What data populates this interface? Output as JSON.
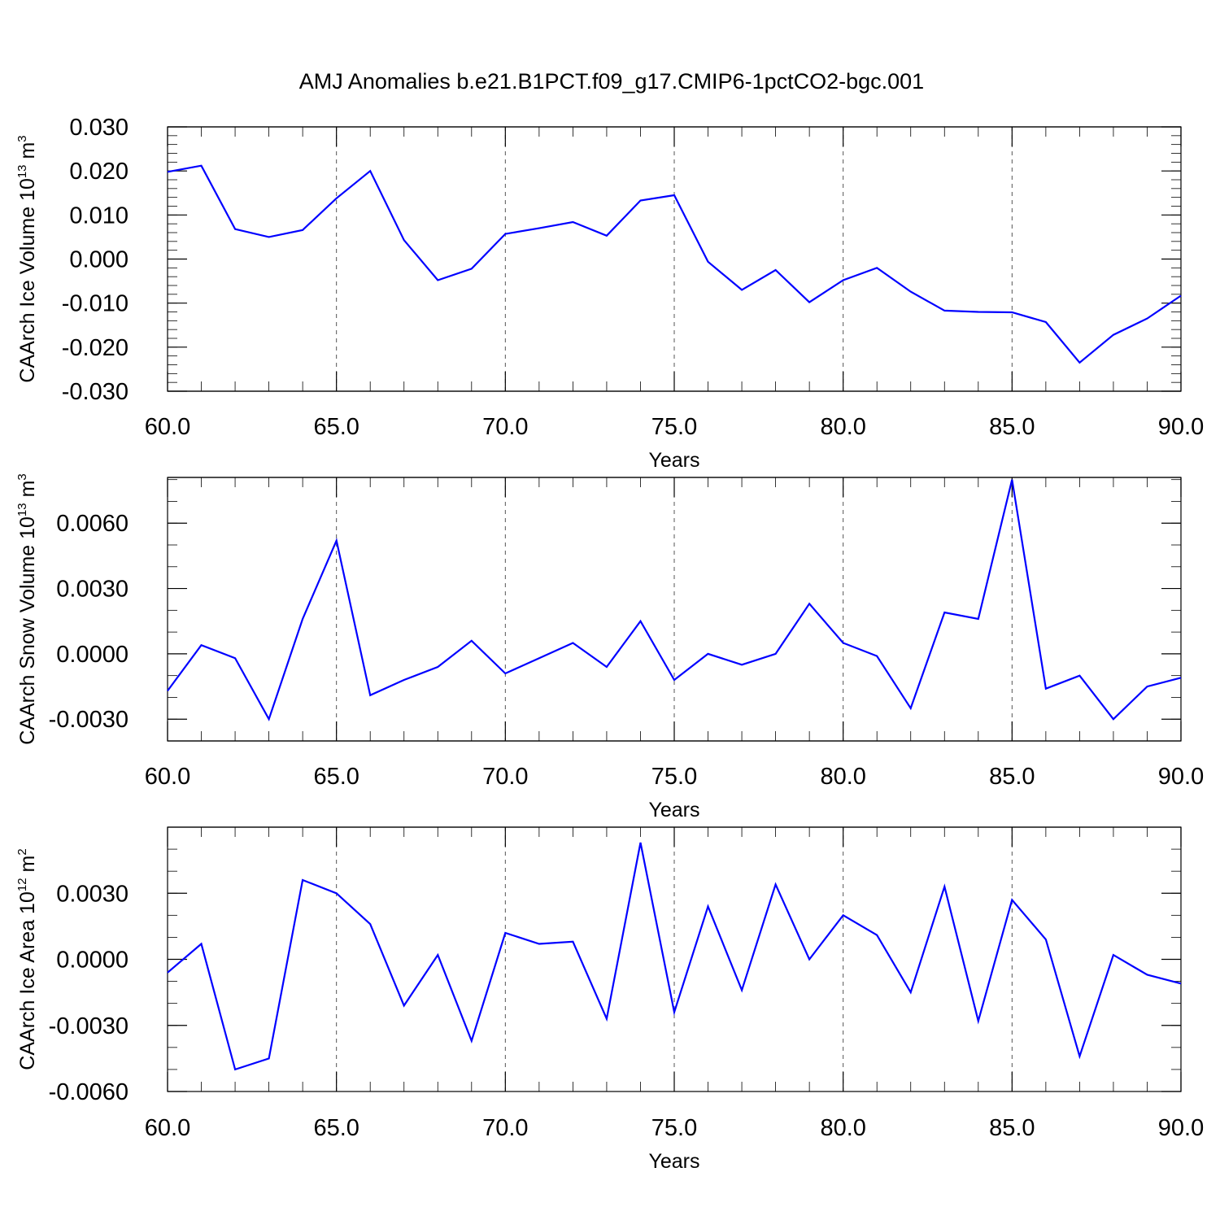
{
  "title": "AMJ Anomalies b.e21.B1PCT.f09_g17.CMIP6-1pctCO2-bgc.001",
  "chart_data": [
    {
      "type": "line",
      "ylabel": "CAArch Ice Volume 10",
      "ylabel_exp": "13",
      "ylabel_unit": "m",
      "ylabel_unit_exp": "3",
      "xlabel": "Years",
      "xlim": [
        60,
        90
      ],
      "ylim": [
        -0.03,
        0.03
      ],
      "xticks": [
        "60.0",
        "65.0",
        "70.0",
        "75.0",
        "80.0",
        "85.0",
        "90.0"
      ],
      "yticks": [
        "0.030",
        "0.020",
        "0.010",
        "0.000",
        "-0.010",
        "-0.020",
        "-0.030"
      ],
      "ytick_values": [
        0.03,
        0.02,
        0.01,
        0.0,
        -0.01,
        -0.02,
        -0.03
      ],
      "yminor_step": 0.002,
      "ref_lines": [
        0.03,
        -0.03
      ],
      "x": [
        60,
        61,
        62,
        63,
        64,
        65,
        66,
        67,
        68,
        69,
        70,
        71,
        72,
        73,
        74,
        75,
        76,
        77,
        78,
        79,
        80,
        81,
        82,
        83,
        84,
        85,
        86,
        87,
        88,
        89,
        90
      ],
      "values": [
        0.0198,
        0.0212,
        0.0068,
        0.005,
        0.0066,
        0.0138,
        0.02,
        0.0043,
        -0.0048,
        -0.0022,
        0.0057,
        0.007,
        0.0084,
        0.0053,
        0.0133,
        0.0145,
        -0.0006,
        -0.007,
        -0.0025,
        -0.0098,
        -0.0048,
        -0.002,
        -0.0074,
        -0.0117,
        -0.012,
        -0.0121,
        -0.0143,
        -0.0235,
        -0.0172,
        -0.0135,
        -0.0083
      ],
      "color": "#0000ff"
    },
    {
      "type": "line",
      "ylabel": "CAArch Snow Volume 10",
      "ylabel_exp": "13",
      "ylabel_unit": "m",
      "ylabel_unit_exp": "3",
      "xlabel": "Years",
      "xlim": [
        60,
        90
      ],
      "ylim": [
        -0.004,
        0.0081
      ],
      "xticks": [
        "60.0",
        "65.0",
        "70.0",
        "75.0",
        "80.0",
        "85.0",
        "90.0"
      ],
      "yticks": [
        "0.0060",
        "0.0030",
        "0.0000",
        "-0.0030"
      ],
      "ytick_values": [
        0.006,
        0.003,
        0.0,
        -0.003
      ],
      "yminor_step": 0.001,
      "ref_lines": [
        0.0081,
        -0.004
      ],
      "x": [
        60,
        61,
        62,
        63,
        64,
        65,
        66,
        67,
        68,
        69,
        70,
        71,
        72,
        73,
        74,
        75,
        76,
        77,
        78,
        79,
        80,
        81,
        82,
        83,
        84,
        85,
        86,
        87,
        88,
        89,
        90
      ],
      "values": [
        -0.0017,
        0.0004,
        -0.0002,
        -0.003,
        0.0016,
        0.0052,
        -0.0019,
        -0.0012,
        -0.0006,
        0.0006,
        -0.0009,
        -0.0002,
        0.0005,
        -0.0006,
        0.0015,
        -0.0012,
        0.0,
        -0.0005,
        0.0,
        0.0023,
        0.0005,
        -0.0001,
        -0.0025,
        0.0019,
        0.0016,
        0.008,
        -0.0016,
        -0.001,
        -0.003,
        -0.0015,
        -0.0011
      ],
      "color": "#0000ff"
    },
    {
      "type": "line",
      "ylabel": "CAArch Ice Area 10",
      "ylabel_exp": "12",
      "ylabel_unit": "m",
      "ylabel_unit_exp": "2",
      "xlabel": "Years",
      "xlim": [
        60,
        90
      ],
      "ylim": [
        -0.006,
        0.006
      ],
      "xticks": [
        "60.0",
        "65.0",
        "70.0",
        "75.0",
        "80.0",
        "85.0",
        "90.0"
      ],
      "yticks": [
        "0.0030",
        "0.0000",
        "-0.0030",
        "-0.0060"
      ],
      "ytick_values": [
        0.003,
        0.0,
        -0.003,
        -0.006
      ],
      "yminor_step": 0.001,
      "ref_lines": [
        0.006
      ],
      "x": [
        60,
        61,
        62,
        63,
        64,
        65,
        66,
        67,
        68,
        69,
        70,
        71,
        72,
        73,
        74,
        75,
        76,
        77,
        78,
        79,
        80,
        81,
        82,
        83,
        84,
        85,
        86,
        87,
        88,
        89,
        90
      ],
      "values": [
        -0.0006,
        0.0007,
        -0.005,
        -0.0045,
        0.0036,
        0.003,
        0.0016,
        -0.0021,
        0.0002,
        -0.0037,
        0.0012,
        0.0007,
        0.0008,
        -0.0027,
        0.0053,
        -0.0024,
        0.0024,
        -0.0014,
        0.0034,
        0.0,
        0.002,
        0.0011,
        -0.0015,
        0.0033,
        -0.0028,
        0.0027,
        0.0009,
        -0.0044,
        0.0002,
        -0.0007,
        -0.0011
      ],
      "color": "#0000ff"
    }
  ]
}
